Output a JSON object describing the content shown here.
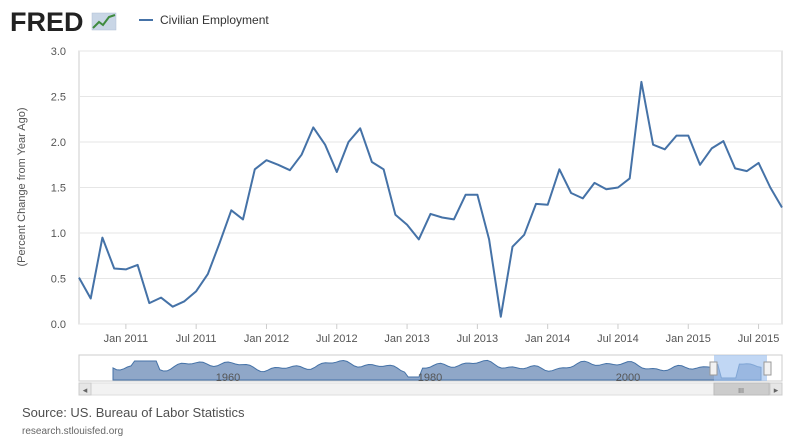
{
  "brand": {
    "logo_text": "FRED"
  },
  "chart_data": {
    "type": "line",
    "title": "",
    "legend": "Civilian Employment",
    "ylabel": "(Percent Change from Year Ago)",
    "xlabel": "",
    "ylim": [
      0,
      3
    ],
    "yticks": [
      "0.0",
      "0.5",
      "1.0",
      "1.5",
      "2.0",
      "2.5",
      "3.0"
    ],
    "xticks": [
      "Jan 2011",
      "Jul 2011",
      "Jan 2012",
      "Jul 2012",
      "Jan 2013",
      "Jul 2013",
      "Jan 2014",
      "Jul 2014",
      "Jan 2015",
      "Jul 2015"
    ],
    "x_start": "2010-09",
    "series": [
      {
        "name": "Civilian Employment",
        "color": "#4572a7",
        "values": [
          0.51,
          0.28,
          0.95,
          0.61,
          0.6,
          0.65,
          0.23,
          0.29,
          0.19,
          0.25,
          0.36,
          0.55,
          0.89,
          1.25,
          1.15,
          1.7,
          1.8,
          1.75,
          1.69,
          1.86,
          2.16,
          1.97,
          1.67,
          2.0,
          2.15,
          1.78,
          1.7,
          1.2,
          1.09,
          0.93,
          1.21,
          1.17,
          1.15,
          1.42,
          1.42,
          0.93,
          0.08,
          0.85,
          0.98,
          1.32,
          1.31,
          1.7,
          1.44,
          1.38,
          1.55,
          1.48,
          1.5,
          1.6,
          2.66,
          1.97,
          1.92,
          2.07,
          2.07,
          1.75,
          1.93,
          2.01,
          1.71,
          1.68,
          1.77,
          1.5,
          1.28
        ]
      }
    ]
  },
  "navigator": {
    "labels": [
      "1960",
      "1980",
      "2000"
    ],
    "scroll_left": "◂",
    "scroll_right": "▸",
    "thumb_grip": "III"
  },
  "footer": {
    "source": "Source: US. Bureau of Labor Statistics",
    "url": "research.stlouisfed.org"
  }
}
